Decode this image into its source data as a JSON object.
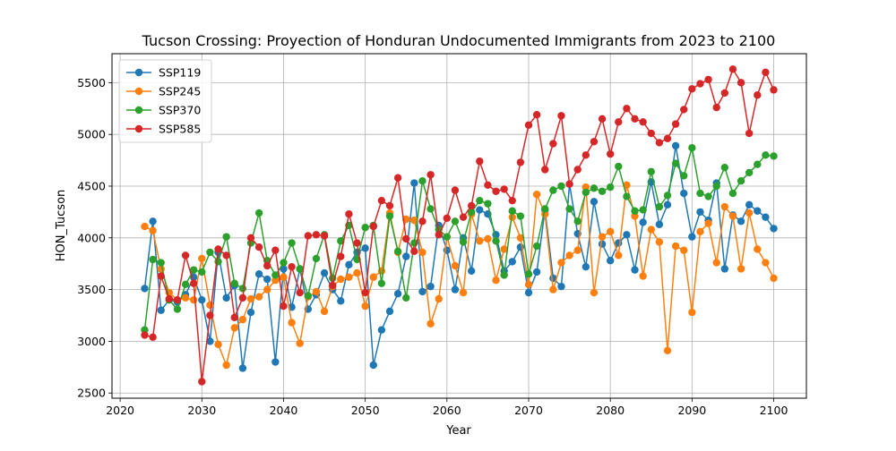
{
  "chart_data": {
    "type": "line",
    "title": "Tucson Crossing: Proyection of Honduran Undocumented Immigrants from 2023 to 2100",
    "xlabel": "Year",
    "ylabel": "HON_Tucson",
    "xlim": [
      2019,
      2104
    ],
    "ylim": [
      2450,
      5780
    ],
    "xticks": [
      2020,
      2030,
      2040,
      2050,
      2060,
      2070,
      2080,
      2090,
      2100
    ],
    "yticks": [
      2500,
      3000,
      3500,
      4000,
      4500,
      5000,
      5500
    ],
    "grid": true,
    "legend_position": "top-left",
    "x": [
      2023,
      2024,
      2025,
      2026,
      2027,
      2028,
      2029,
      2030,
      2031,
      2032,
      2033,
      2034,
      2035,
      2036,
      2037,
      2038,
      2039,
      2040,
      2041,
      2042,
      2043,
      2044,
      2045,
      2046,
      2047,
      2048,
      2049,
      2050,
      2051,
      2052,
      2053,
      2054,
      2055,
      2056,
      2057,
      2058,
      2059,
      2060,
      2061,
      2062,
      2063,
      2064,
      2065,
      2066,
      2067,
      2068,
      2069,
      2070,
      2071,
      2072,
      2073,
      2074,
      2075,
      2076,
      2077,
      2078,
      2079,
      2080,
      2081,
      2082,
      2083,
      2084,
      2085,
      2086,
      2087,
      2088,
      2089,
      2090,
      2091,
      2092,
      2093,
      2094,
      2095,
      2096,
      2097,
      2098,
      2099,
      2100
    ],
    "series": [
      {
        "name": "SSP119",
        "color": "#1f77b4",
        "values": [
          3510,
          4160,
          3300,
          3400,
          3380,
          3450,
          3620,
          3400,
          3000,
          3860,
          3420,
          3540,
          2740,
          3280,
          3650,
          3600,
          2800,
          3700,
          3330,
          3700,
          3310,
          3450,
          3660,
          3500,
          3390,
          3740,
          3860,
          3900,
          2770,
          3110,
          3290,
          3460,
          3820,
          4530,
          3480,
          3530,
          4120,
          3880,
          3500,
          4000,
          3680,
          4270,
          4230,
          4030,
          3680,
          3770,
          3910,
          3470,
          3670,
          4270,
          3610,
          3530,
          4520,
          4040,
          3720,
          4350,
          3940,
          3780,
          3950,
          4030,
          3690,
          4150,
          4540,
          4130,
          4320,
          4890,
          4430,
          4010,
          4250,
          4170,
          4530,
          3700,
          4220,
          4160,
          4320,
          4260,
          4200,
          4090
        ]
      },
      {
        "name": "SSP245",
        "color": "#ff7f0e",
        "values": [
          4110,
          4070,
          3700,
          3470,
          3400,
          3420,
          3400,
          3800,
          3350,
          2970,
          2770,
          3130,
          3210,
          3410,
          3430,
          3500,
          3590,
          3620,
          3180,
          2980,
          3430,
          3480,
          3290,
          3530,
          3600,
          3620,
          3660,
          3340,
          3620,
          3680,
          4240,
          3860,
          4180,
          4170,
          3860,
          3170,
          3410,
          4010,
          3730,
          3470,
          4230,
          3970,
          3990,
          3590,
          3890,
          4200,
          4000,
          3550,
          4420,
          4230,
          3500,
          3760,
          3830,
          3880,
          4490,
          3470,
          4010,
          4060,
          3830,
          4510,
          4210,
          3630,
          4080,
          3960,
          2910,
          3920,
          3880,
          3280,
          4060,
          4140,
          3760,
          4300,
          4210,
          3700,
          4240,
          3890,
          3760,
          3610
        ]
      },
      {
        "name": "SSP370",
        "color": "#2ca02c",
        "values": [
          3110,
          3790,
          3760,
          3400,
          3310,
          3550,
          3690,
          3670,
          3860,
          3770,
          4010,
          3560,
          3510,
          3950,
          4240,
          3780,
          3640,
          3760,
          3950,
          3700,
          3440,
          3800,
          4030,
          3610,
          3970,
          4120,
          3790,
          4100,
          4120,
          3560,
          4210,
          3870,
          3420,
          3950,
          4550,
          4280,
          4080,
          4010,
          4160,
          3960,
          4250,
          4360,
          4330,
          3970,
          3640,
          4260,
          4210,
          3650,
          3920,
          4280,
          4460,
          4500,
          4280,
          4160,
          4440,
          4480,
          4450,
          4490,
          4690,
          4400,
          4260,
          4270,
          4640,
          4300,
          4410,
          4720,
          4600,
          4870,
          4430,
          4400,
          4500,
          4680,
          4430,
          4550,
          4630,
          4710,
          4800,
          4790
        ]
      },
      {
        "name": "SSP585",
        "color": "#d62728",
        "values": [
          3060,
          3040,
          3630,
          3410,
          3400,
          3830,
          3560,
          2610,
          3250,
          3890,
          3830,
          3230,
          3420,
          4000,
          3910,
          3730,
          3880,
          3340,
          3720,
          3470,
          4020,
          4030,
          4020,
          3540,
          3820,
          4230,
          3950,
          3470,
          4110,
          4360,
          4310,
          4580,
          3990,
          3870,
          4160,
          4610,
          4030,
          4190,
          4460,
          4200,
          4310,
          4740,
          4510,
          4450,
          4470,
          4360,
          4730,
          5090,
          5190,
          4660,
          4910,
          5180,
          4520,
          4660,
          4800,
          4930,
          5150,
          4810,
          5120,
          5250,
          5150,
          5120,
          5010,
          4920,
          4960,
          5100,
          5240,
          5440,
          5490,
          5530,
          5260,
          5400,
          5630,
          5500,
          5010,
          5380,
          5600,
          5430
        ]
      }
    ]
  }
}
